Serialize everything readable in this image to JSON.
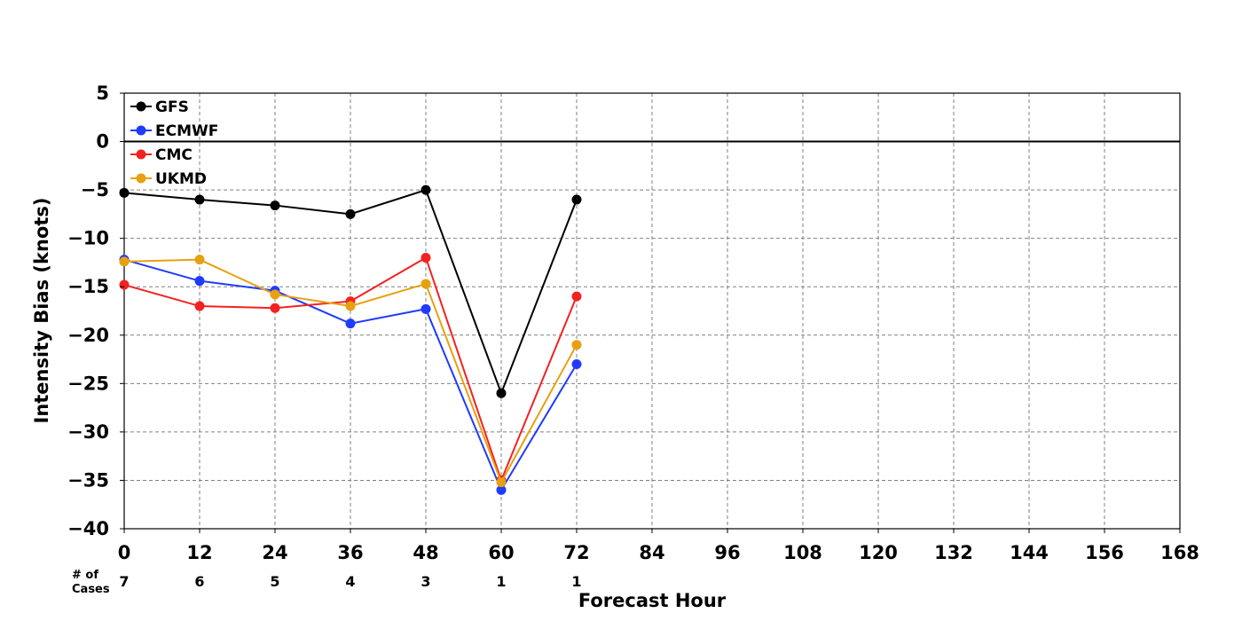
{
  "chart_data": {
    "type": "line",
    "xlabel": "Forecast Hour",
    "ylabel": "Intensity Bias (knots)",
    "xlim": [
      0,
      168
    ],
    "ylim": [
      -40,
      5
    ],
    "x_ticks": [
      0,
      12,
      24,
      36,
      48,
      60,
      72,
      84,
      96,
      108,
      120,
      132,
      144,
      156,
      168
    ],
    "y_ticks": [
      5,
      0,
      -5,
      -10,
      -15,
      -20,
      -25,
      -30,
      -35,
      -40
    ],
    "grid": true,
    "zero_line": true,
    "legend_position": "top-left",
    "x": [
      0,
      12,
      24,
      36,
      48,
      60,
      72
    ],
    "series": [
      {
        "name": "GFS",
        "color": "#000000",
        "values": [
          -5.3,
          -6.0,
          -6.6,
          -7.5,
          -5.0,
          -26.0,
          -6.0
        ]
      },
      {
        "name": "ECMWF",
        "color": "#1f3bff",
        "values": [
          -12.2,
          -14.4,
          -15.4,
          -18.8,
          -17.3,
          -36.0,
          -23.0
        ]
      },
      {
        "name": "CMC",
        "color": "#f22222",
        "values": [
          -14.8,
          -17.0,
          -17.2,
          -16.5,
          -12.0,
          -35.0,
          -16.0
        ]
      },
      {
        "name": "UKMD",
        "color": "#e8a010",
        "values": [
          -12.4,
          -12.2,
          -15.8,
          -17.0,
          -14.7,
          -35.2,
          -21.0
        ]
      }
    ],
    "cases": {
      "label_line1": "# of",
      "label_line2": "Cases",
      "values": [
        7,
        6,
        5,
        4,
        3,
        1,
        1
      ]
    }
  }
}
